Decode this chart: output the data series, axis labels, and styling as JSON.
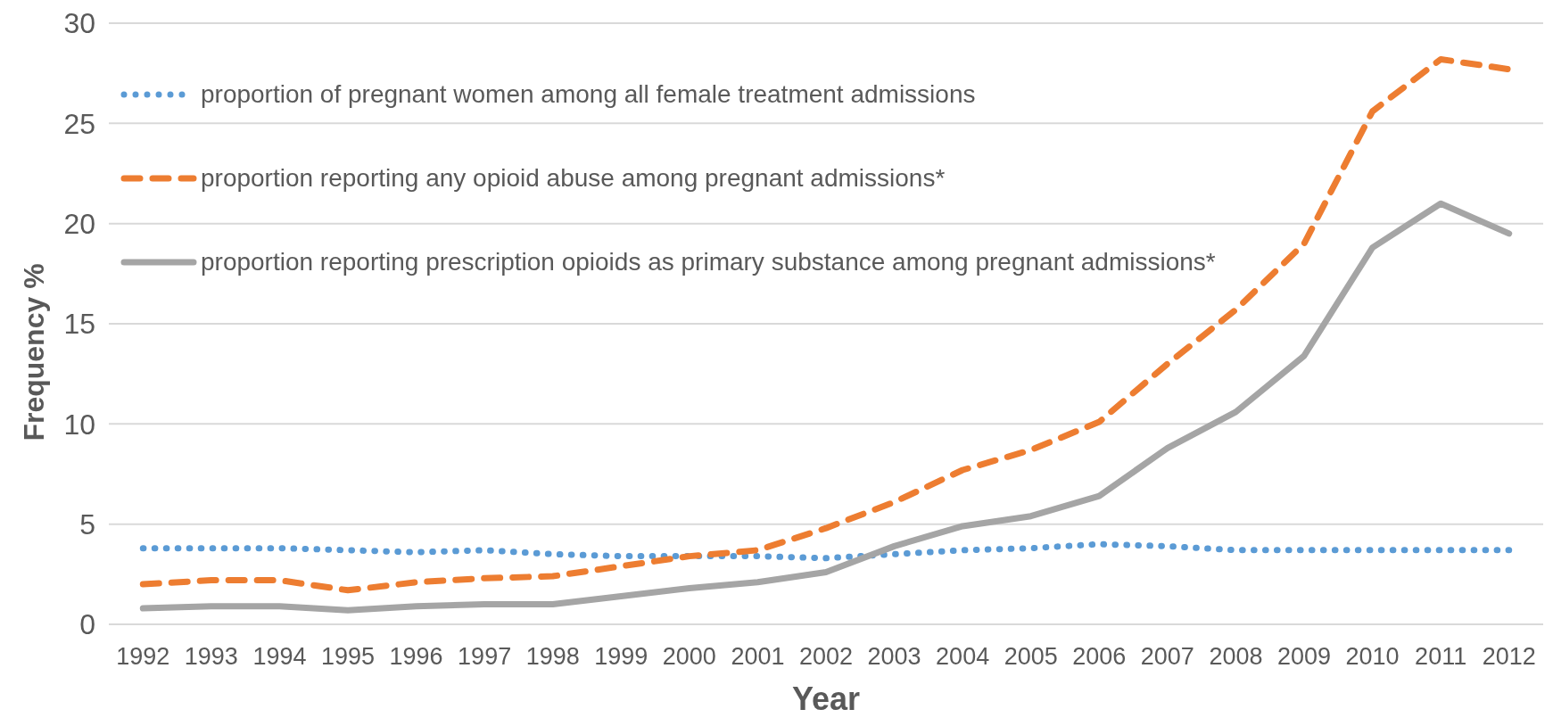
{
  "chart_data": {
    "type": "line",
    "xlabel": "Year",
    "ylabel": "Frequency %",
    "categories": [
      "1992",
      "1993",
      "1994",
      "1995",
      "1996",
      "1997",
      "1998",
      "1999",
      "2000",
      "2001",
      "2002",
      "2003",
      "2004",
      "2005",
      "2006",
      "2007",
      "2008",
      "2009",
      "2010",
      "2011",
      "2012"
    ],
    "series": [
      {
        "name": "proportion of pregnant women among all female treatment admissions",
        "color": "#5b9bd5",
        "line_style": "dotted",
        "values": [
          3.8,
          3.8,
          3.8,
          3.7,
          3.6,
          3.7,
          3.5,
          3.4,
          3.4,
          3.4,
          3.3,
          3.5,
          3.7,
          3.8,
          4.0,
          3.9,
          3.7,
          3.7,
          3.7,
          3.7,
          3.7
        ]
      },
      {
        "name": "proportion reporting any opioid abuse among pregnant admissions*",
        "color": "#ed7d31",
        "line_style": "dashed",
        "values": [
          2.0,
          2.2,
          2.2,
          1.7,
          2.1,
          2.3,
          2.4,
          2.9,
          3.4,
          3.7,
          4.8,
          6.1,
          7.7,
          8.7,
          10.1,
          13.0,
          15.7,
          19.0,
          25.6,
          28.2,
          27.7
        ]
      },
      {
        "name": "proportion reporting prescription opioids as primary substance among pregnant admissions*",
        "color": "#a5a5a5",
        "line_style": "solid",
        "values": [
          0.8,
          0.9,
          0.9,
          0.7,
          0.9,
          1.0,
          1.0,
          1.4,
          1.8,
          2.1,
          2.6,
          3.9,
          4.9,
          5.4,
          6.4,
          8.8,
          10.6,
          13.4,
          18.8,
          21.0,
          19.5
        ]
      }
    ],
    "ylim": [
      0,
      30
    ],
    "yticks": [
      0,
      5,
      10,
      15,
      20,
      25,
      30
    ],
    "grid": "y",
    "legend": "top left"
  }
}
